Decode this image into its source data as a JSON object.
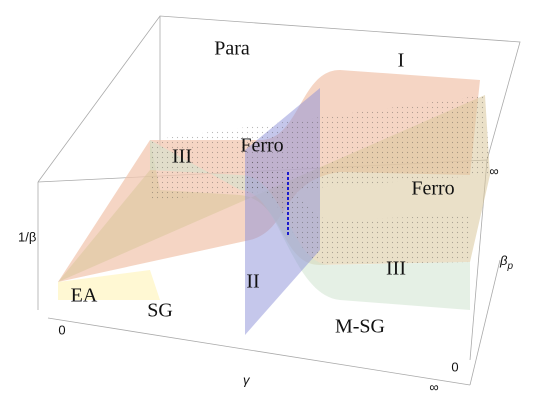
{
  "regions": {
    "para": "Para",
    "region_i": "I",
    "ferro_left": "Ferro",
    "ferro_right": "Ferro",
    "region_iii_left": "III",
    "region_iii_right": "III",
    "region_ii": "II",
    "ea": "EA",
    "sg": "SG",
    "msg": "M-SG"
  },
  "axes": {
    "inverse_beta": "1/β",
    "gamma": "γ",
    "beta_p": {
      "symbol": "β",
      "subscript": "p"
    },
    "origin_left": "0",
    "origin_right": "0",
    "infinity_beta_p": "∞",
    "infinity_gamma": "∞"
  }
}
